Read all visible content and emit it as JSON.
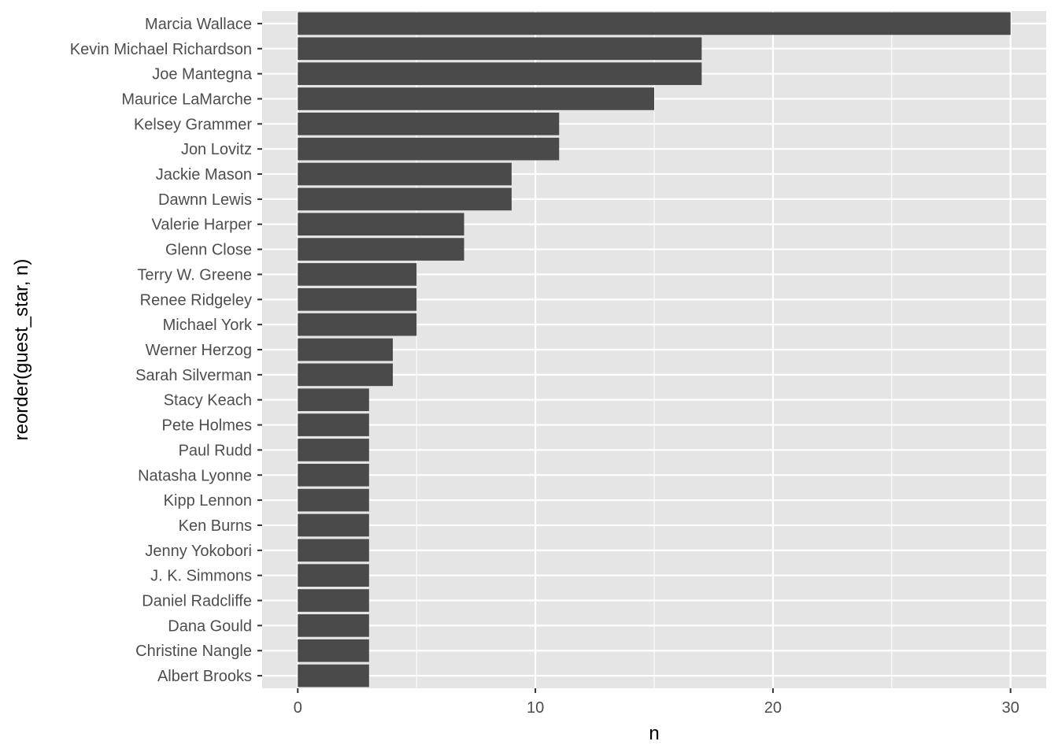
{
  "chart_data": {
    "type": "bar",
    "orientation": "horizontal",
    "xlabel": "n",
    "ylabel": "reorder(guest_star, n)",
    "xlim": [
      -1.5,
      31.5
    ],
    "x_ticks": [
      0,
      10,
      20,
      30
    ],
    "x_minor_ticks": [
      5,
      15,
      25
    ],
    "grid": true,
    "colors": {
      "panel_background": "#e5e5e5",
      "grid": "#ffffff",
      "bar": "#4a4a4a",
      "tick_label": "#4d4d4d",
      "axis_title": "#000000"
    },
    "categories": [
      "Marcia Wallace",
      "Kevin Michael Richardson",
      "Joe Mantegna",
      "Maurice LaMarche",
      "Kelsey Grammer",
      "Jon Lovitz",
      "Jackie Mason",
      "Dawnn Lewis",
      "Valerie Harper",
      "Glenn Close",
      "Terry W. Greene",
      "Renee Ridgeley",
      "Michael York",
      "Werner Herzog",
      "Sarah Silverman",
      "Stacy Keach",
      "Pete Holmes",
      "Paul Rudd",
      "Natasha Lyonne",
      "Kipp Lennon",
      "Ken Burns",
      "Jenny Yokobori",
      "J. K. Simmons",
      "Daniel Radcliffe",
      "Dana Gould",
      "Christine Nangle",
      "Albert Brooks"
    ],
    "values": [
      30,
      17,
      17,
      15,
      11,
      11,
      9,
      9,
      7,
      7,
      5,
      5,
      5,
      4,
      4,
      3,
      3,
      3,
      3,
      3,
      3,
      3,
      3,
      3,
      3,
      3,
      3
    ]
  }
}
